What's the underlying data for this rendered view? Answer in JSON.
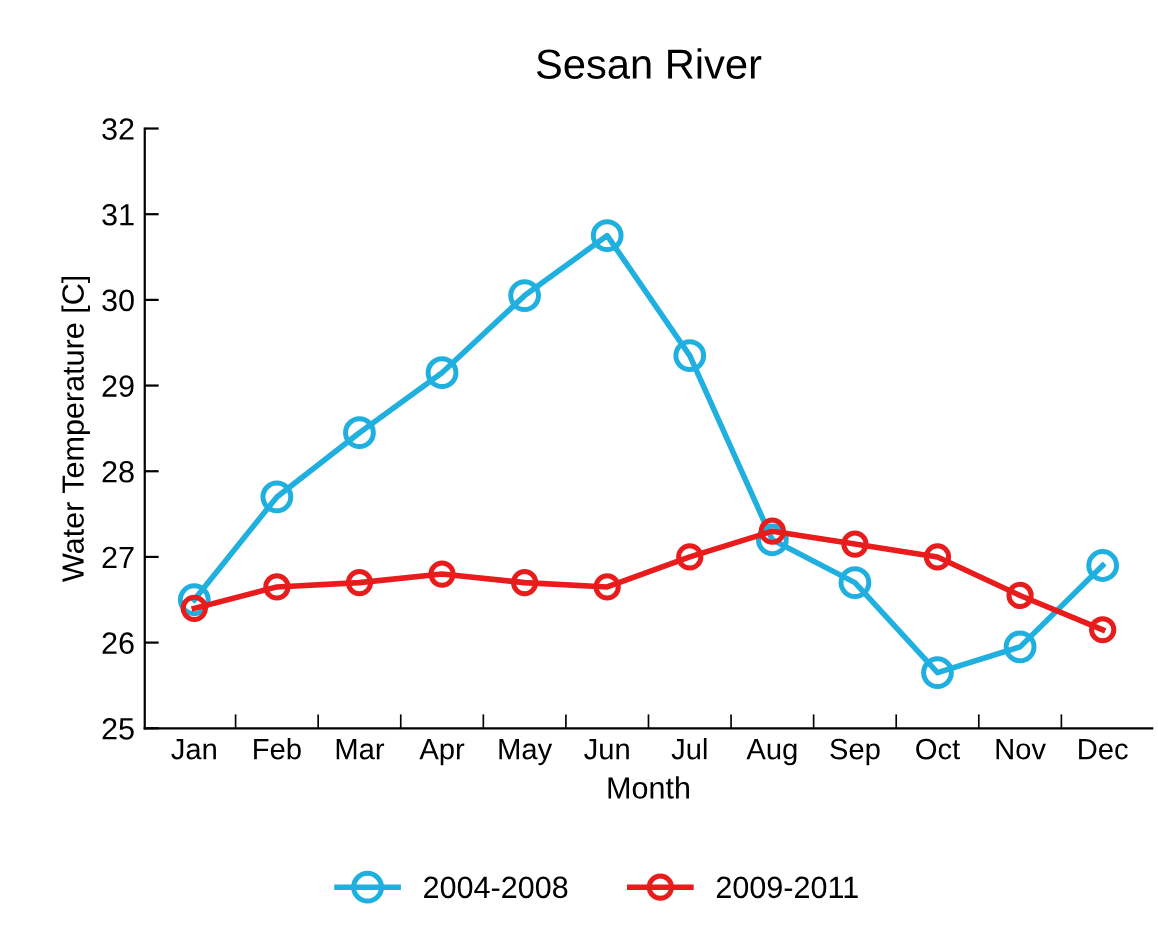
{
  "chart_data": {
    "type": "line",
    "title": "Sesan River",
    "xlabel": "Month",
    "ylabel": "Water Temperature [C]",
    "categories": [
      "Jan",
      "Feb",
      "Mar",
      "Apr",
      "May",
      "Jun",
      "Jul",
      "Aug",
      "Sep",
      "Oct",
      "Nov",
      "Dec"
    ],
    "series": [
      {
        "name": "2004-2008",
        "color": "#1fb0e0",
        "values": [
          26.5,
          27.7,
          28.45,
          29.15,
          30.05,
          30.75,
          29.35,
          27.2,
          26.7,
          25.65,
          25.95,
          26.9
        ]
      },
      {
        "name": "2009-2011",
        "color": "#e81c1c",
        "values": [
          26.4,
          26.65,
          26.7,
          26.8,
          26.7,
          26.65,
          27.0,
          27.3,
          27.15,
          27.0,
          26.55,
          26.15
        ]
      }
    ],
    "ylim": [
      25,
      32
    ],
    "yticks": [
      25,
      26,
      27,
      28,
      29,
      30,
      31,
      32
    ],
    "grid": false,
    "legend": "bottom",
    "marker": "circle",
    "line_style": "solid"
  }
}
